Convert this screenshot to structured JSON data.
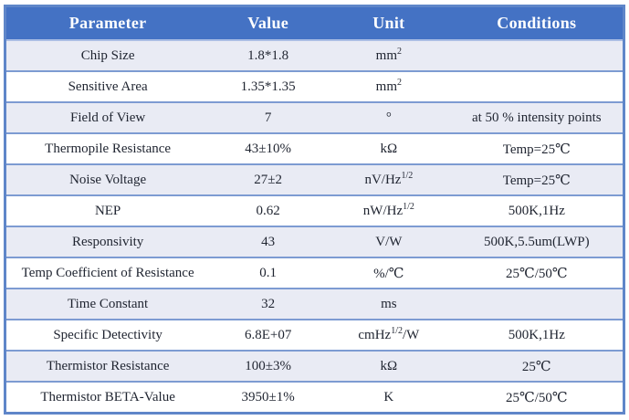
{
  "theme": {
    "header_bg": "#4472C4",
    "header_text": "#ffffff",
    "band_bg": "#E9EBF4",
    "row_white": "#ffffff",
    "grid_line": "#7D9BD2",
    "outer_border": "#5F86C9",
    "text_color": "#1F2430"
  },
  "table": {
    "columns": [
      "Parameter",
      "Value",
      "Unit",
      "Conditions"
    ],
    "rows": [
      {
        "parameter": "Chip Size",
        "value": "1.8*1.8",
        "unit": [
          {
            "t": "mm"
          },
          {
            "t": "2",
            "sup": true
          }
        ],
        "conditions": ""
      },
      {
        "parameter": "Sensitive Area",
        "value": "1.35*1.35",
        "unit": [
          {
            "t": "mm"
          },
          {
            "t": "2",
            "sup": true
          }
        ],
        "conditions": ""
      },
      {
        "parameter": "Field of View",
        "value": "7",
        "unit": [
          {
            "t": "°"
          }
        ],
        "conditions": "at 50 % intensity points"
      },
      {
        "parameter": "Thermopile Resistance",
        "value": "43±10%",
        "unit": [
          {
            "t": "kΩ"
          }
        ],
        "conditions": "Temp=25℃"
      },
      {
        "parameter": "Noise Voltage",
        "value": "27±2",
        "unit": [
          {
            "t": "nV/Hz"
          },
          {
            "t": "1/2",
            "sup": true
          }
        ],
        "conditions": "Temp=25℃"
      },
      {
        "parameter": "NEP",
        "value": "0.62",
        "unit": [
          {
            "t": "nW/Hz"
          },
          {
            "t": "1/2",
            "sup": true
          }
        ],
        "conditions": "500K,1Hz"
      },
      {
        "parameter": "Responsivity",
        "value": "43",
        "unit": [
          {
            "t": "V/W"
          }
        ],
        "conditions": "500K,5.5um(LWP)"
      },
      {
        "parameter": "Temp Coefficient of Resistance",
        "value": "0.1",
        "unit": [
          {
            "t": "%/℃"
          }
        ],
        "conditions": "25℃/50℃"
      },
      {
        "parameter": "Time Constant",
        "value": "32",
        "unit": [
          {
            "t": "ms"
          }
        ],
        "conditions": ""
      },
      {
        "parameter": "Specific Detectivity",
        "value": "6.8E+07",
        "unit": [
          {
            "t": "cmHz"
          },
          {
            "t": "1/2",
            "sup": true
          },
          {
            "t": "/W"
          }
        ],
        "conditions": "500K,1Hz"
      },
      {
        "parameter": "Thermistor Resistance",
        "value": "100±3%",
        "unit": [
          {
            "t": "kΩ"
          }
        ],
        "conditions": "25℃"
      },
      {
        "parameter": "Thermistor BETA-Value",
        "value": "3950±1%",
        "unit": [
          {
            "t": "K"
          }
        ],
        "conditions": "25℃/50℃"
      }
    ]
  }
}
